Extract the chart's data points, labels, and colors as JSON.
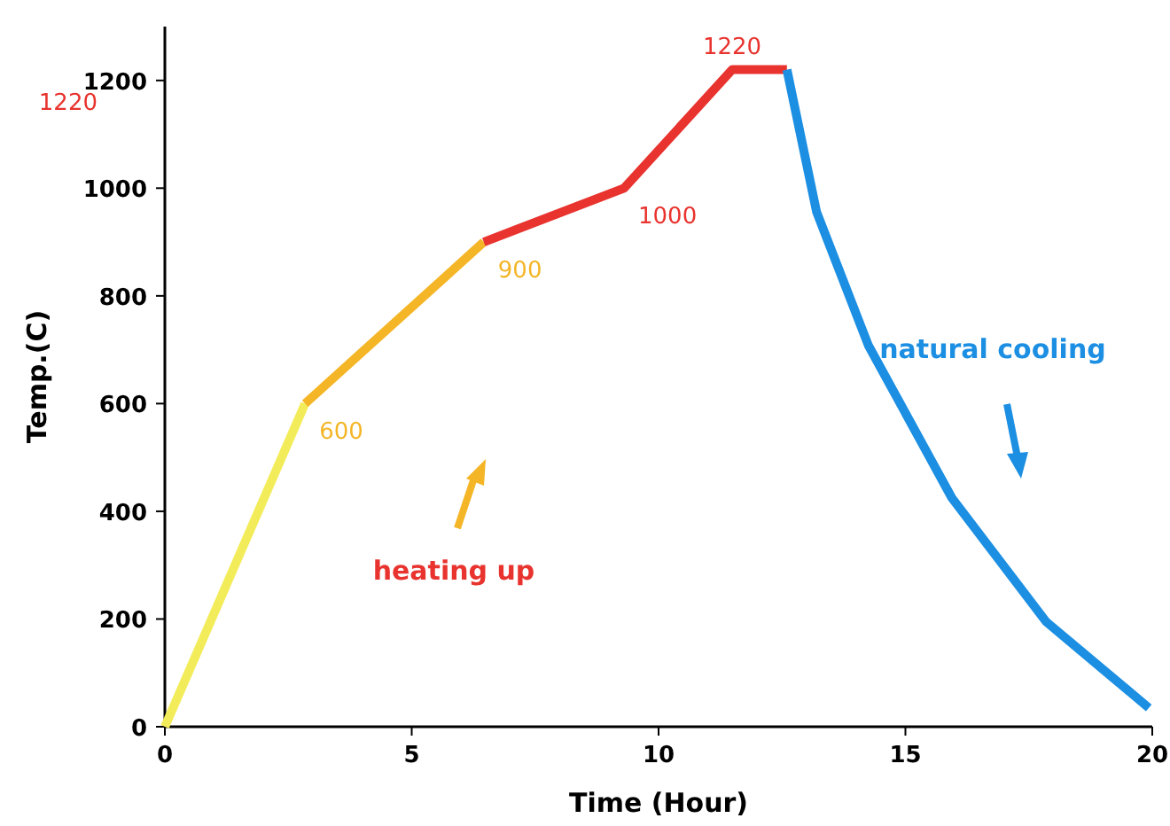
{
  "chart_data": {
    "type": "line",
    "xlabel": "Time (Hour)",
    "ylabel": "Temp.(C)",
    "xlim": [
      0,
      20
    ],
    "ylim": [
      0,
      1300
    ],
    "xticks": [
      0,
      5,
      10,
      15,
      20
    ],
    "yticks": [
      0,
      200,
      400,
      600,
      800,
      1000,
      1200
    ],
    "grid": false,
    "marker": "none",
    "line_style": "solid",
    "series": [
      {
        "color": "#f3ec5a",
        "x": [
          0,
          2.84
        ],
        "values": [
          0,
          600
        ]
      },
      {
        "color": "#f4b526",
        "x": [
          2.84,
          6.46
        ],
        "values": [
          600,
          900
        ]
      },
      {
        "color": "#e8332e",
        "x": [
          6.46,
          9.3,
          11.49,
          12.6
        ],
        "values": [
          900,
          1000,
          1220,
          1220
        ]
      },
      {
        "color": "#1c8fe3",
        "x": [
          12.6,
          13.2,
          14.25,
          15.94,
          17.85,
          19.93
        ],
        "values": [
          1220,
          956,
          708,
          425,
          195,
          35
        ]
      }
    ],
    "annotations": [
      {
        "text": "600",
        "x": 2.84,
        "y": 600
      },
      {
        "text": "900",
        "x": 6.46,
        "y": 900
      },
      {
        "text": "1000",
        "x": 9.3,
        "y": 1000
      },
      {
        "text": "1220",
        "x": 11.49,
        "y": 1220
      },
      "1220",
      "heating up",
      "natural cooling"
    ]
  }
}
